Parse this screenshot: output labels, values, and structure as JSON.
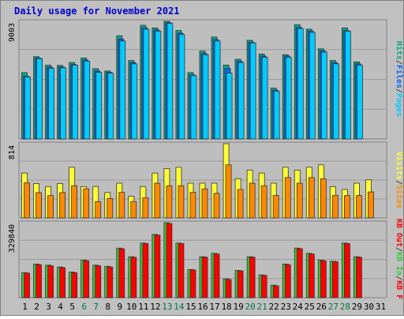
{
  "title": "Daily usage for November 2021",
  "colors": {
    "background": "#c0c0c0",
    "panel": "#bebebe",
    "title": "#0000cc",
    "pages": "#00ccff",
    "files": "#0066ff",
    "hits": "#00aa88",
    "visits": "#ffff33",
    "sites": "#ff8800",
    "kb_in": "#33cc33",
    "kb_out": "#ff0000",
    "weekend_day": "#007744",
    "weekday": "#000000"
  },
  "chart_data": [
    {
      "type": "bar",
      "panel": "hits-files-pages",
      "ymax_label": "9003",
      "ymax": 9003,
      "legend": [
        "Pages",
        "Files",
        "Hits"
      ],
      "categories": [
        "1",
        "2",
        "3",
        "4",
        "5",
        "6",
        "7",
        "8",
        "9",
        "10",
        "11",
        "12",
        "13",
        "14",
        "15",
        "16",
        "17",
        "18",
        "19",
        "20",
        "21",
        "22",
        "23",
        "24",
        "25",
        "26",
        "27",
        "28",
        "29",
        "30",
        "31"
      ],
      "series": [
        {
          "name": "Hits",
          "values": [
            5080,
            6300,
            5650,
            5630,
            5850,
            6200,
            5380,
            5200,
            7900,
            6000,
            8700,
            8500,
            9003,
            8300,
            5080,
            6730,
            7800,
            5650,
            6100,
            7550,
            6500,
            3890,
            6450,
            8750,
            8400,
            6900,
            6000,
            8500,
            5900,
            0,
            0
          ]
        },
        {
          "name": "Files",
          "values": [
            4800,
            6200,
            5500,
            5500,
            5700,
            6050,
            5200,
            5100,
            7650,
            5850,
            8500,
            8350,
            8900,
            8100,
            4900,
            6550,
            7600,
            5400,
            5950,
            7400,
            6350,
            3750,
            6350,
            8550,
            8250,
            6750,
            5850,
            8300,
            5750,
            0,
            0
          ]
        },
        {
          "name": "Pages",
          "values": [
            4750,
            6150,
            5400,
            5450,
            5650,
            5950,
            5100,
            5050,
            7500,
            5750,
            8400,
            8250,
            8850,
            8000,
            4850,
            6450,
            7500,
            5050,
            5850,
            7350,
            6250,
            3650,
            6250,
            8450,
            8150,
            6650,
            5750,
            8250,
            5650,
            0,
            0
          ]
        }
      ]
    },
    {
      "type": "bar",
      "panel": "visits-sites",
      "ymax_label": "814",
      "ymax": 814,
      "legend": [
        "Sites",
        "Visits"
      ],
      "categories": [
        "1",
        "2",
        "3",
        "4",
        "5",
        "6",
        "7",
        "8",
        "9",
        "10",
        "11",
        "12",
        "13",
        "14",
        "15",
        "16",
        "17",
        "18",
        "19",
        "20",
        "21",
        "22",
        "23",
        "24",
        "25",
        "26",
        "27",
        "28",
        "29",
        "30",
        "31"
      ],
      "series": [
        {
          "name": "Visits",
          "values": [
            492,
            376,
            344,
            376,
            555,
            344,
            344,
            278,
            381,
            238,
            344,
            492,
            540,
            555,
            381,
            381,
            381,
            814,
            430,
            525,
            492,
            381,
            555,
            525,
            555,
            582,
            344,
            312,
            381,
            418,
            0
          ]
        },
        {
          "name": "Sites",
          "values": [
            385,
            278,
            246,
            278,
            353,
            319,
            180,
            213,
            281,
            180,
            220,
            381,
            353,
            353,
            281,
            319,
            270,
            582,
            312,
            381,
            353,
            246,
            443,
            381,
            443,
            430,
            246,
            246,
            246,
            285,
            0
          ]
        }
      ]
    },
    {
      "type": "bar",
      "panel": "kbytes",
      "ymax_label": "329840",
      "ymax": 329840,
      "legend": [
        "KB F",
        "KB In",
        "KB Out"
      ],
      "categories": [
        "1",
        "2",
        "3",
        "4",
        "5",
        "6",
        "7",
        "8",
        "9",
        "10",
        "11",
        "12",
        "13",
        "14",
        "15",
        "16",
        "17",
        "18",
        "19",
        "20",
        "21",
        "22",
        "23",
        "24",
        "25",
        "26",
        "27",
        "28",
        "29",
        "30",
        "31"
      ],
      "series": [
        {
          "name": "KB In",
          "values": [
            110000,
            148000,
            143000,
            135000,
            113000,
            165000,
            143000,
            138000,
            218000,
            180000,
            240000,
            278000,
            329840,
            240000,
            124000,
            180000,
            195000,
            83000,
            120000,
            180000,
            100000,
            55000,
            148000,
            218000,
            195000,
            165000,
            160000,
            240000,
            180000,
            0,
            0
          ]
        },
        {
          "name": "KB Out",
          "values": [
            108000,
            145000,
            140000,
            132000,
            110000,
            162000,
            140000,
            135000,
            215000,
            178000,
            238000,
            275000,
            326000,
            238000,
            122000,
            178000,
            192000,
            80000,
            118000,
            178000,
            98000,
            52000,
            145000,
            215000,
            192000,
            162000,
            158000,
            238000,
            178000,
            0,
            0
          ]
        }
      ]
    }
  ],
  "x_axis": {
    "labels": [
      "1",
      "2",
      "3",
      "4",
      "5",
      "6",
      "7",
      "8",
      "9",
      "10",
      "11",
      "12",
      "13",
      "14",
      "15",
      "16",
      "17",
      "18",
      "19",
      "20",
      "21",
      "22",
      "23",
      "24",
      "25",
      "26",
      "27",
      "28",
      "29",
      "30",
      "31"
    ],
    "weekend": [
      6,
      7,
      13,
      14,
      20,
      21,
      27,
      28
    ]
  },
  "side_labels": {
    "top": [
      "Hits",
      "/",
      "Files",
      "/",
      "Pages"
    ],
    "middle": [
      "Visits",
      "/",
      "Sites"
    ],
    "bottom": [
      "KB Out",
      "/",
      "KB In",
      "/",
      "KB F"
    ]
  }
}
